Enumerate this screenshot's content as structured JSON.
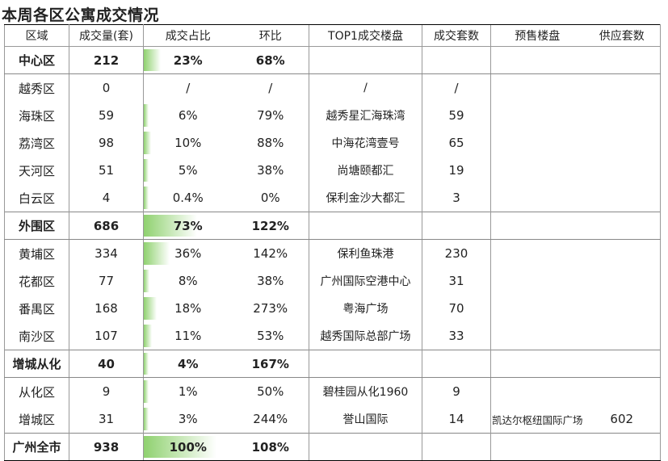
{
  "title": "本周各区公寓成交情况",
  "headers": [
    "区域",
    "成交量(套)",
    "成交占比",
    "环比",
    "TOP1成交楼盘",
    "成交套数",
    "预售楼盘",
    "供应套数"
  ],
  "rows": [
    {
      "type": "group",
      "region": "中心区",
      "volume": "212",
      "share": "23%",
      "share_value": 23,
      "mom": "68%",
      "top1": "",
      "top1_units": "",
      "presale": "",
      "supply": ""
    },
    {
      "type": "district",
      "region": "越秀区",
      "volume": "0",
      "share": "/",
      "share_value": 0,
      "mom": "/",
      "top1": "/",
      "top1_units": "/",
      "presale": "",
      "supply": ""
    },
    {
      "type": "district",
      "region": "海珠区",
      "volume": "59",
      "share": "6%",
      "share_value": 6,
      "mom": "79%",
      "top1": "越秀星汇海珠湾",
      "top1_units": "59",
      "presale": "",
      "supply": ""
    },
    {
      "type": "district",
      "region": "荔湾区",
      "volume": "98",
      "share": "10%",
      "share_value": 10,
      "mom": "88%",
      "top1": "中海花湾壹号",
      "top1_units": "65",
      "presale": "",
      "supply": ""
    },
    {
      "type": "district",
      "region": "天河区",
      "volume": "51",
      "share": "5%",
      "share_value": 5,
      "mom": "38%",
      "top1": "尚塘颐都汇",
      "top1_units": "19",
      "presale": "",
      "supply": ""
    },
    {
      "type": "district",
      "region": "白云区",
      "volume": "4",
      "share": "0.4%",
      "share_value": 0.4,
      "mom": "0%",
      "top1": "保利金沙大都汇",
      "top1_units": "3",
      "presale": "",
      "supply": ""
    },
    {
      "type": "group",
      "region": "外围区",
      "volume": "686",
      "share": "73%",
      "share_value": 73,
      "mom": "122%",
      "top1": "",
      "top1_units": "",
      "presale": "",
      "supply": ""
    },
    {
      "type": "district",
      "region": "黄埔区",
      "volume": "334",
      "share": "36%",
      "share_value": 36,
      "mom": "142%",
      "top1": "保利鱼珠港",
      "top1_units": "230",
      "presale": "",
      "supply": ""
    },
    {
      "type": "district",
      "region": "花都区",
      "volume": "77",
      "share": "8%",
      "share_value": 8,
      "mom": "38%",
      "top1": "广州国际空港中心",
      "top1_units": "31",
      "presale": "",
      "supply": ""
    },
    {
      "type": "district",
      "region": "番禺区",
      "volume": "168",
      "share": "18%",
      "share_value": 18,
      "mom": "273%",
      "top1": "粤海广场",
      "top1_units": "70",
      "presale": "",
      "supply": ""
    },
    {
      "type": "district",
      "region": "南沙区",
      "volume": "107",
      "share": "11%",
      "share_value": 11,
      "mom": "53%",
      "top1": "越秀国际总部广场",
      "top1_units": "33",
      "presale": "",
      "supply": ""
    },
    {
      "type": "group",
      "region": "增城从化",
      "volume": "40",
      "share": "4%",
      "share_value": 4,
      "mom": "167%",
      "top1": "",
      "top1_units": "",
      "presale": "",
      "supply": ""
    },
    {
      "type": "district",
      "region": "从化区",
      "volume": "9",
      "share": "1%",
      "share_value": 1,
      "mom": "50%",
      "top1": "碧桂园从化1960",
      "top1_units": "9",
      "presale": "",
      "supply": ""
    },
    {
      "type": "district",
      "region": "增城区",
      "volume": "31",
      "share": "3%",
      "share_value": 3,
      "mom": "244%",
      "top1": "誉山国际",
      "top1_units": "14",
      "presale": "凯达尔枢纽国际广场",
      "supply": "602"
    },
    {
      "type": "group",
      "region": "广州全市",
      "volume": "938",
      "share": "100%",
      "share_value": 100,
      "mom": "108%",
      "top1": "",
      "top1_units": "",
      "presale": "",
      "supply": ""
    }
  ]
}
